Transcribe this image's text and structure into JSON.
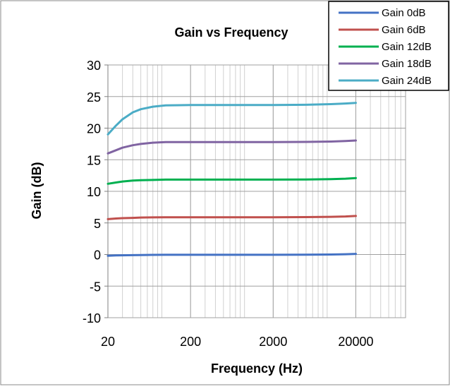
{
  "chart_data": {
    "type": "line",
    "title": "Gain vs Frequency",
    "xlabel": "Frequency (Hz)",
    "ylabel": "Gain (dB)",
    "x_scale": "log",
    "xlim": [
      20,
      80000
    ],
    "ylim": [
      -10,
      30
    ],
    "x_ticks": [
      20,
      200,
      2000,
      20000
    ],
    "x_tick_labels": [
      "20",
      "200",
      "2000",
      "20000"
    ],
    "y_ticks": [
      -10,
      -5,
      0,
      5,
      10,
      15,
      20,
      25,
      30
    ],
    "y_tick_labels": [
      "-10",
      "-5",
      "0",
      "5",
      "10",
      "15",
      "20",
      "25",
      "30"
    ],
    "grid": true,
    "legend_position": "top-right",
    "x": [
      20,
      25,
      30,
      40,
      50,
      70,
      100,
      200,
      500,
      1000,
      2000,
      5000,
      10000,
      15000,
      20000
    ],
    "series": [
      {
        "name": "Gain 0dB",
        "color": "#4472c4",
        "values": [
          -0.2,
          -0.15,
          -0.12,
          -0.1,
          -0.08,
          -0.06,
          -0.05,
          -0.05,
          -0.05,
          -0.05,
          -0.05,
          -0.03,
          0.0,
          0.05,
          0.1
        ]
      },
      {
        "name": "Gain 6dB",
        "color": "#c0504d",
        "values": [
          5.6,
          5.7,
          5.75,
          5.8,
          5.85,
          5.88,
          5.9,
          5.9,
          5.9,
          5.9,
          5.9,
          5.92,
          5.97,
          6.02,
          6.1
        ]
      },
      {
        "name": "Gain 12dB",
        "color": "#00b050",
        "values": [
          11.2,
          11.4,
          11.55,
          11.7,
          11.75,
          11.8,
          11.85,
          11.85,
          11.85,
          11.85,
          11.85,
          11.88,
          11.93,
          12.0,
          12.1
        ]
      },
      {
        "name": "Gain 18dB",
        "color": "#8064a2",
        "values": [
          16.0,
          16.5,
          16.9,
          17.3,
          17.5,
          17.7,
          17.8,
          17.8,
          17.8,
          17.8,
          17.8,
          17.82,
          17.88,
          17.95,
          18.05
        ]
      },
      {
        "name": "Gain 24dB",
        "color": "#4bacc6",
        "values": [
          19.0,
          20.4,
          21.4,
          22.5,
          23.0,
          23.4,
          23.6,
          23.65,
          23.65,
          23.65,
          23.65,
          23.7,
          23.8,
          23.9,
          24.0
        ]
      }
    ]
  }
}
